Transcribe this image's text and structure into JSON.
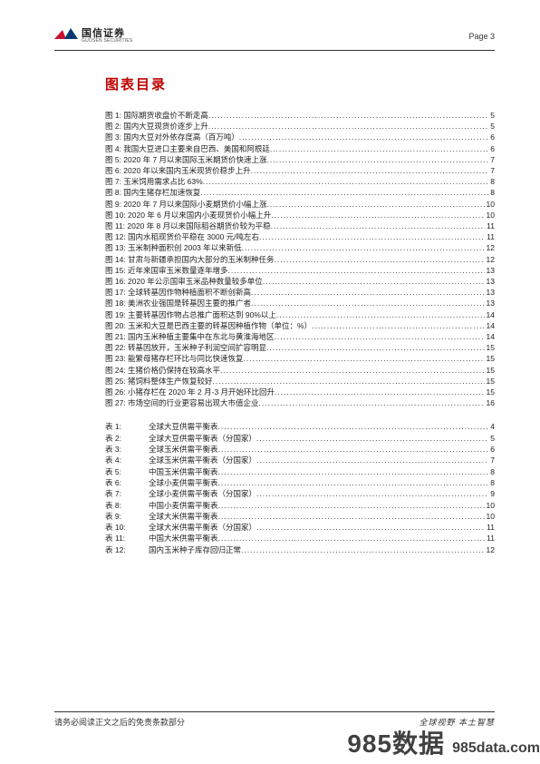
{
  "header": {
    "company_cn": "国信证券",
    "company_en": "GUOSEN SECURITIES",
    "page_label": "Page  3",
    "logo_colors": {
      "left": "#c8102e",
      "right": "#003a70"
    }
  },
  "title": "图表目录",
  "footer": {
    "left": "请务必阅读正文之后的免责条款部分",
    "right": "全球视野  本土智慧"
  },
  "watermark": {
    "big": "985数据",
    "small": "985data.com"
  },
  "figs": [
    {
      "label": "图 1:",
      "text": "国际期货收盘价不断走高",
      "page": "5"
    },
    {
      "label": "图 2:",
      "text": "国内大豆现货价逐步上升",
      "page": "5"
    },
    {
      "label": "图 3:",
      "text": "国内大豆对外依存度高（百万吨）",
      "page": "6"
    },
    {
      "label": "图 4:",
      "text": "我国大豆进口主要来自巴西、美国和阿根廷",
      "page": "6"
    },
    {
      "label": "图 5:",
      "text": "2020 年 7 月以来国际玉米期货价快速上涨",
      "page": "7"
    },
    {
      "label": "图 6:",
      "text": "2020 年以来国内玉米现货价稳步上升",
      "page": "7"
    },
    {
      "label": "图 7:",
      "text": "玉米饲用需求占比 63%",
      "page": "8"
    },
    {
      "label": "图 8:",
      "text": "国内生猪存栏加速恢复",
      "page": "8"
    },
    {
      "label": "图 9:",
      "text": "2020 年 7 月以来国际小麦期货价小幅上涨",
      "page": "10"
    },
    {
      "label": "图 10:",
      "text": "2020 年 6 月以来国内小麦现货价小幅上升",
      "page": "10"
    },
    {
      "label": "图 11:",
      "text": "2020 年 8 月以来国际稻谷期货价较为平稳",
      "page": "11"
    },
    {
      "label": "图 12:",
      "text": "国内水稻现货价平稳在 3000 元/吨左右",
      "page": "11"
    },
    {
      "label": "图 13:",
      "text": "玉米制种面积创 2003 年以来新低",
      "page": "12"
    },
    {
      "label": "图 14:",
      "text": "甘肃与新疆承担国内大部分的玉米制种任务",
      "page": "12"
    },
    {
      "label": "图 15:",
      "text": "近年来国审玉米数量逐年增多",
      "page": "13"
    },
    {
      "label": "图 16:",
      "text": "2020 年公示国审玉米品种数量较多单位",
      "page": "13"
    },
    {
      "label": "图 17:",
      "text": "全球转基因作物种植面积不断创新高",
      "page": "13"
    },
    {
      "label": "图 18:",
      "text": "美洲农业强国是转基因主要的推广者",
      "page": "13"
    },
    {
      "label": "图 19:",
      "text": "主要转基因作物占总推广面积达到 90%以上",
      "page": "14"
    },
    {
      "label": "图 20:",
      "text": "玉米和大豆是巴西主要的转基因种植作物（单位：%）",
      "page": "14"
    },
    {
      "label": "图 21:",
      "text": "国内玉米种植主要集中在东北与黄淮海地区",
      "page": "14"
    },
    {
      "label": "图 22:",
      "text": "转基因放开，玉米种子利润空间扩容明显",
      "page": "15"
    },
    {
      "label": "图 23:",
      "text": "能繁母猪存栏环比与同比快速恢复",
      "page": "15"
    },
    {
      "label": "图 24:",
      "text": "生猪价格仍保持在较高水平",
      "page": "15"
    },
    {
      "label": "图 25:",
      "text": "猪饲料整体生产恢复较好",
      "page": "15"
    },
    {
      "label": "图 26:",
      "text": "小猪存栏在 2020 年 2 月-3 月开始环比回升",
      "page": "15"
    },
    {
      "label": "图 27:",
      "text": "市场空间的行业更容易出现大市值企业",
      "page": "16"
    }
  ],
  "tables": [
    {
      "c1": "表 1:",
      "text": "全球大豆供需平衡表",
      "page": "4"
    },
    {
      "c1": "表 2:",
      "text": "全球大豆供需平衡表（分国家）",
      "page": "5"
    },
    {
      "c1": "表 3:",
      "text": "全球玉米供需平衡表",
      "page": "6"
    },
    {
      "c1": "表 4:",
      "text": "全球玉米供需平衡表（分国家）",
      "page": "7"
    },
    {
      "c1": "表 5:",
      "text": "中国玉米供需平衡表",
      "page": "8"
    },
    {
      "c1": "表 6:",
      "text": "全球小麦供需平衡表",
      "page": "8"
    },
    {
      "c1": "表 7:",
      "text": "全球小麦供需平衡表（分国家）",
      "page": "9"
    },
    {
      "c1": "表 8:",
      "text": "中国小麦供需平衡表",
      "page": "10"
    },
    {
      "c1": "表 9:",
      "text": "全球大米供需平衡表",
      "page": "10"
    },
    {
      "c1": "表 10:",
      "text": "全球大米供需平衡表（分国家）",
      "page": "11"
    },
    {
      "c1": "表 11:",
      "text": "中国大米供需平衡表",
      "page": "11"
    },
    {
      "c1": "表 12:",
      "text": "国内玉米种子库存回归正常",
      "page": "12"
    }
  ]
}
